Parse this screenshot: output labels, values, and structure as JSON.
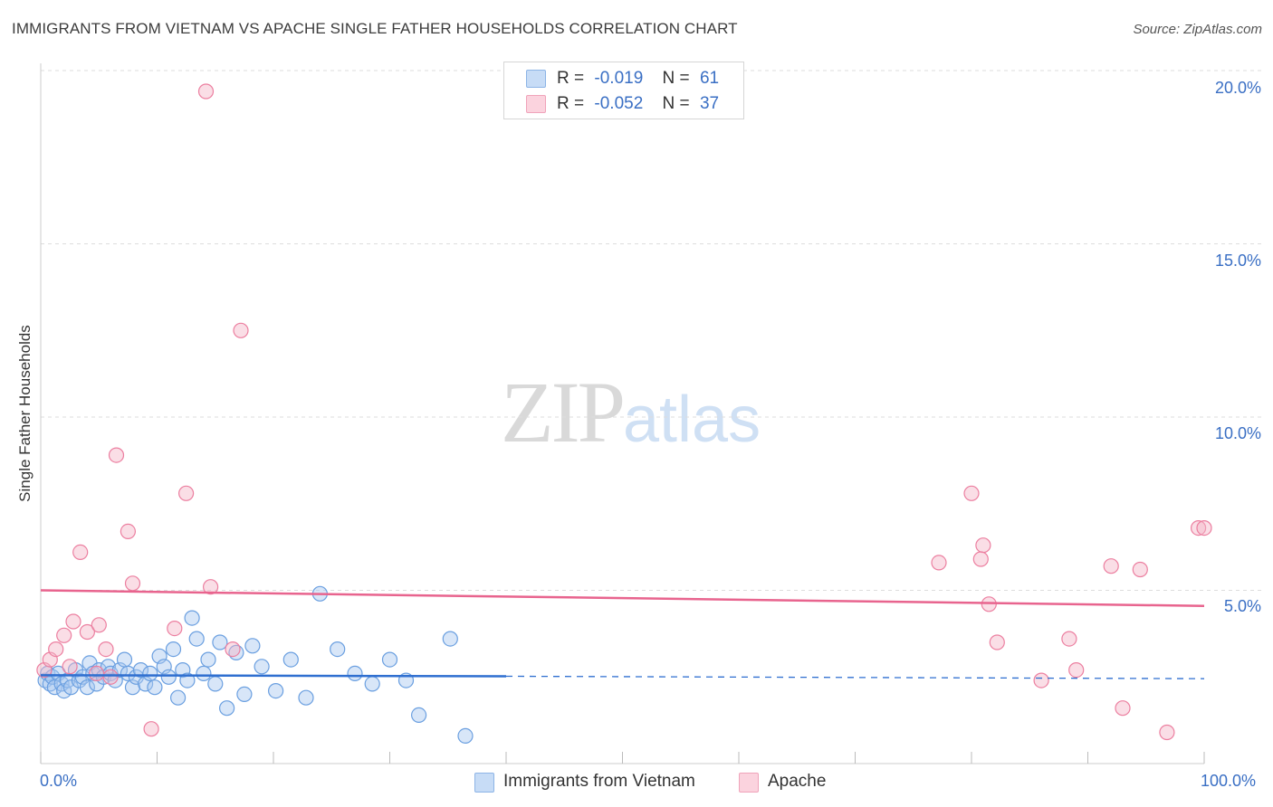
{
  "header": {
    "title": "IMMIGRANTS FROM VIETNAM VS APACHE SINGLE FATHER HOUSEHOLDS CORRELATION CHART",
    "source": "Source: ZipAtlas.com"
  },
  "watermark": {
    "zip": "ZIP",
    "atlas": "atlas"
  },
  "legend": {
    "rows": [
      {
        "r_label": "R =",
        "r_value": "-0.019",
        "n_label": "N =",
        "n_value": "61",
        "color": "#a9c8f0"
      },
      {
        "r_label": "R =",
        "r_value": "-0.052",
        "n_label": "N =",
        "n_value": "37",
        "color": "#f5b6c8"
      }
    ]
  },
  "bottom_legend": {
    "items": [
      {
        "label": "Immigrants from Vietnam",
        "color": "#a9c8f0"
      },
      {
        "label": "Apache",
        "color": "#f5b6c8"
      }
    ]
  },
  "axis": {
    "xmin_label": "0.0%",
    "xmax_label": "100.0%",
    "ylabel": "Single Father Households",
    "yticks": [
      "20.0%",
      "15.0%",
      "10.0%",
      "5.0%"
    ]
  },
  "chart_data": {
    "type": "scatter",
    "title": "IMMIGRANTS FROM VIETNAM VS APACHE SINGLE FATHER HOUSEHOLDS CORRELATION CHART",
    "xlabel": "",
    "ylabel": "Single Father Households",
    "xlim": [
      0,
      100
    ],
    "ylim": [
      0,
      21
    ],
    "ytick_values": [
      5,
      10,
      15,
      20
    ],
    "grid": "horizontal dashed",
    "legend_position": "top-center",
    "series": [
      {
        "name": "Immigrants from Vietnam",
        "color": "#6a9fe0",
        "fill": "#a9c8f0",
        "trend_color": "#2f6fd0",
        "trend": {
          "x0": 0,
          "y0": 2.55,
          "x1": 40,
          "y1": 2.52,
          "dashed_to_x": 100,
          "dashed_to_y": 2.45
        },
        "points": [
          [
            0.4,
            2.4
          ],
          [
            0.6,
            2.6
          ],
          [
            0.8,
            2.3
          ],
          [
            1.0,
            2.5
          ],
          [
            1.2,
            2.2
          ],
          [
            1.5,
            2.6
          ],
          [
            1.8,
            2.3
          ],
          [
            2.0,
            2.1
          ],
          [
            2.3,
            2.4
          ],
          [
            2.6,
            2.2
          ],
          [
            3.0,
            2.7
          ],
          [
            3.3,
            2.4
          ],
          [
            3.6,
            2.5
          ],
          [
            4.0,
            2.2
          ],
          [
            4.2,
            2.9
          ],
          [
            4.5,
            2.6
          ],
          [
            4.8,
            2.3
          ],
          [
            5.0,
            2.7
          ],
          [
            5.4,
            2.5
          ],
          [
            5.8,
            2.8
          ],
          [
            6.0,
            2.6
          ],
          [
            6.4,
            2.4
          ],
          [
            6.8,
            2.7
          ],
          [
            7.2,
            3.0
          ],
          [
            7.5,
            2.6
          ],
          [
            7.9,
            2.2
          ],
          [
            8.2,
            2.5
          ],
          [
            8.6,
            2.7
          ],
          [
            9.0,
            2.3
          ],
          [
            9.4,
            2.6
          ],
          [
            9.8,
            2.2
          ],
          [
            10.2,
            3.1
          ],
          [
            10.6,
            2.8
          ],
          [
            11.0,
            2.5
          ],
          [
            11.4,
            3.3
          ],
          [
            11.8,
            1.9
          ],
          [
            12.2,
            2.7
          ],
          [
            12.6,
            2.4
          ],
          [
            13.0,
            4.2
          ],
          [
            13.4,
            3.6
          ],
          [
            14.0,
            2.6
          ],
          [
            14.4,
            3.0
          ],
          [
            15.0,
            2.3
          ],
          [
            15.4,
            3.5
          ],
          [
            16.0,
            1.6
          ],
          [
            16.8,
            3.2
          ],
          [
            17.5,
            2.0
          ],
          [
            18.2,
            3.4
          ],
          [
            19.0,
            2.8
          ],
          [
            20.2,
            2.1
          ],
          [
            21.5,
            3.0
          ],
          [
            22.8,
            1.9
          ],
          [
            24.0,
            4.9
          ],
          [
            25.5,
            3.3
          ],
          [
            27.0,
            2.6
          ],
          [
            28.5,
            2.3
          ],
          [
            30.0,
            3.0
          ],
          [
            31.4,
            2.4
          ],
          [
            32.5,
            1.4
          ],
          [
            35.2,
            3.6
          ],
          [
            36.5,
            0.8
          ]
        ]
      },
      {
        "name": "Apache",
        "color": "#ec7fa0",
        "fill": "#f5b6c8",
        "trend_color": "#e8648e",
        "trend": {
          "x0": 0,
          "y0": 5.0,
          "x1": 100,
          "y1": 4.55
        },
        "points": [
          [
            0.3,
            2.7
          ],
          [
            0.8,
            3.0
          ],
          [
            1.3,
            3.3
          ],
          [
            2.0,
            3.7
          ],
          [
            2.5,
            2.8
          ],
          [
            2.8,
            4.1
          ],
          [
            3.4,
            6.1
          ],
          [
            4.0,
            3.8
          ],
          [
            4.8,
            2.6
          ],
          [
            5.0,
            4.0
          ],
          [
            5.6,
            3.3
          ],
          [
            6.0,
            2.5
          ],
          [
            6.5,
            8.9
          ],
          [
            7.5,
            6.7
          ],
          [
            7.9,
            5.2
          ],
          [
            9.5,
            1.0
          ],
          [
            11.5,
            3.9
          ],
          [
            12.5,
            7.8
          ],
          [
            14.2,
            19.4
          ],
          [
            14.6,
            5.1
          ],
          [
            16.5,
            3.3
          ],
          [
            17.2,
            12.5
          ],
          [
            80.0,
            7.8
          ],
          [
            81.0,
            6.3
          ],
          [
            80.8,
            5.9
          ],
          [
            77.2,
            5.8
          ],
          [
            81.5,
            4.6
          ],
          [
            82.2,
            3.5
          ],
          [
            86.0,
            2.4
          ],
          [
            88.4,
            3.6
          ],
          [
            89.0,
            2.7
          ],
          [
            92.0,
            5.7
          ],
          [
            93.0,
            1.6
          ],
          [
            94.5,
            5.6
          ],
          [
            96.8,
            0.9
          ],
          [
            99.5,
            6.8
          ],
          [
            100.0,
            6.8
          ]
        ]
      }
    ]
  }
}
